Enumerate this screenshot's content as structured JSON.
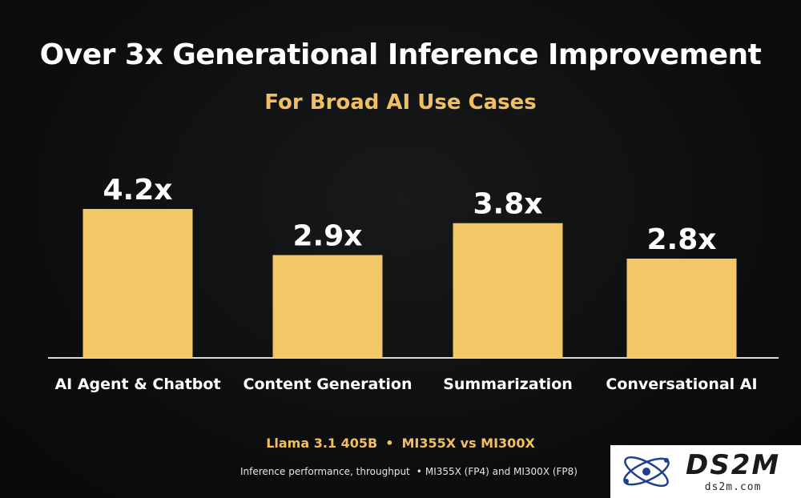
{
  "title": "Over 3x Generational Inference Improvement",
  "subtitle": "For Broad AI Use Cases",
  "chart_data": {
    "type": "bar",
    "categories": [
      "AI Agent & Chatbot",
      "Content Generation",
      "Summarization",
      "Conversational AI"
    ],
    "values": [
      4.2,
      2.9,
      3.8,
      2.8
    ],
    "data_labels": [
      "4.2x",
      "2.9x",
      "3.8x",
      "2.8x"
    ],
    "title": "Over 3x Generational Inference Improvement",
    "subtitle": "For Broad AI Use Cases",
    "xlabel": "",
    "ylabel": "",
    "ylim": [
      0,
      5
    ],
    "grid": false,
    "legend": "none",
    "bar_color": "#f3c767",
    "label_color": "#ffffff",
    "baseline_color": "#d9d9d9"
  },
  "footnote": {
    "model": "Llama 3.1 405B",
    "separator": "•",
    "comparison": "MI355X vs MI300X",
    "detail": "Inference performance, throughput",
    "detail_bullet": "•",
    "detail_config": "MI355X (FP4) and MI300X (FP8)"
  },
  "watermark": {
    "brand": "DS2M",
    "url": "ds2m.com",
    "icon": "atom-logo-icon"
  },
  "colors": {
    "background": "#0d0e0f",
    "accent": "#f0c060",
    "text": "#ffffff"
  }
}
